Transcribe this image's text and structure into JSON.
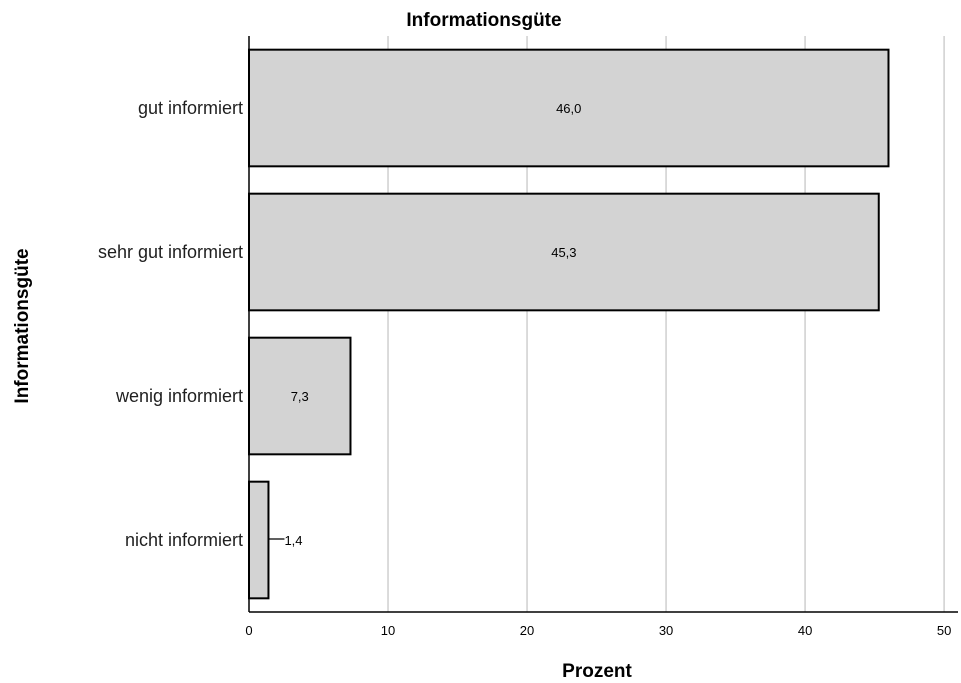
{
  "chart_data": {
    "type": "bar",
    "orientation": "horizontal",
    "title": "Informationsgüte",
    "xlabel": "Prozent",
    "ylabel": "Informationsgüte",
    "categories": [
      "gut informiert",
      "sehr gut informiert",
      "wenig informiert",
      "nicht informiert"
    ],
    "values": [
      46.0,
      45.3,
      7.3,
      1.4
    ],
    "data_labels": [
      "46,0",
      "45,3",
      "7,3",
      "1,4"
    ],
    "xlim": [
      0,
      51
    ],
    "xticks": [
      0,
      10,
      20,
      30,
      40,
      50
    ],
    "xtick_labels": [
      "0",
      "10",
      "20",
      "30",
      "40",
      "50"
    ],
    "grid": "vertical",
    "legend": "none",
    "bar_color": "#d3d3d3",
    "bar_edge_color": "#000000"
  }
}
